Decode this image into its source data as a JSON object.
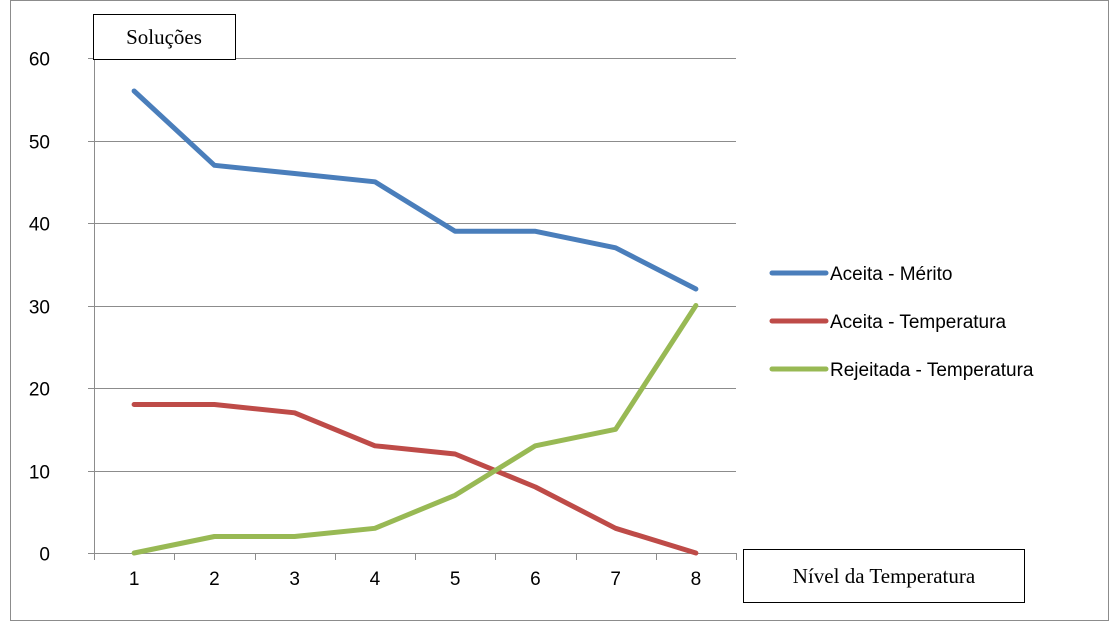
{
  "chart_data": {
    "type": "line",
    "categories": [
      "1",
      "2",
      "3",
      "4",
      "5",
      "6",
      "7",
      "8"
    ],
    "series": [
      {
        "name": "Aceita - Mérito",
        "color": "#4a7ebb",
        "values": [
          56,
          47,
          46,
          45,
          39,
          39,
          37,
          32
        ]
      },
      {
        "name": "Aceita - Temperatura",
        "color": "#be4b48",
        "values": [
          18,
          18,
          17,
          13,
          12,
          8,
          3,
          0
        ]
      },
      {
        "name": "Rejeitada - Temperatura",
        "color": "#98b954",
        "values": [
          0,
          2,
          2,
          3,
          7,
          13,
          15,
          30
        ]
      }
    ],
    "ylabel": "Soluções",
    "xlabel": "Nível da Temperatura",
    "ylim": [
      0,
      60
    ],
    "yticks": [
      "0",
      "10",
      "20",
      "30",
      "40",
      "50",
      "60"
    ],
    "grid": true,
    "legend_position": "right"
  }
}
